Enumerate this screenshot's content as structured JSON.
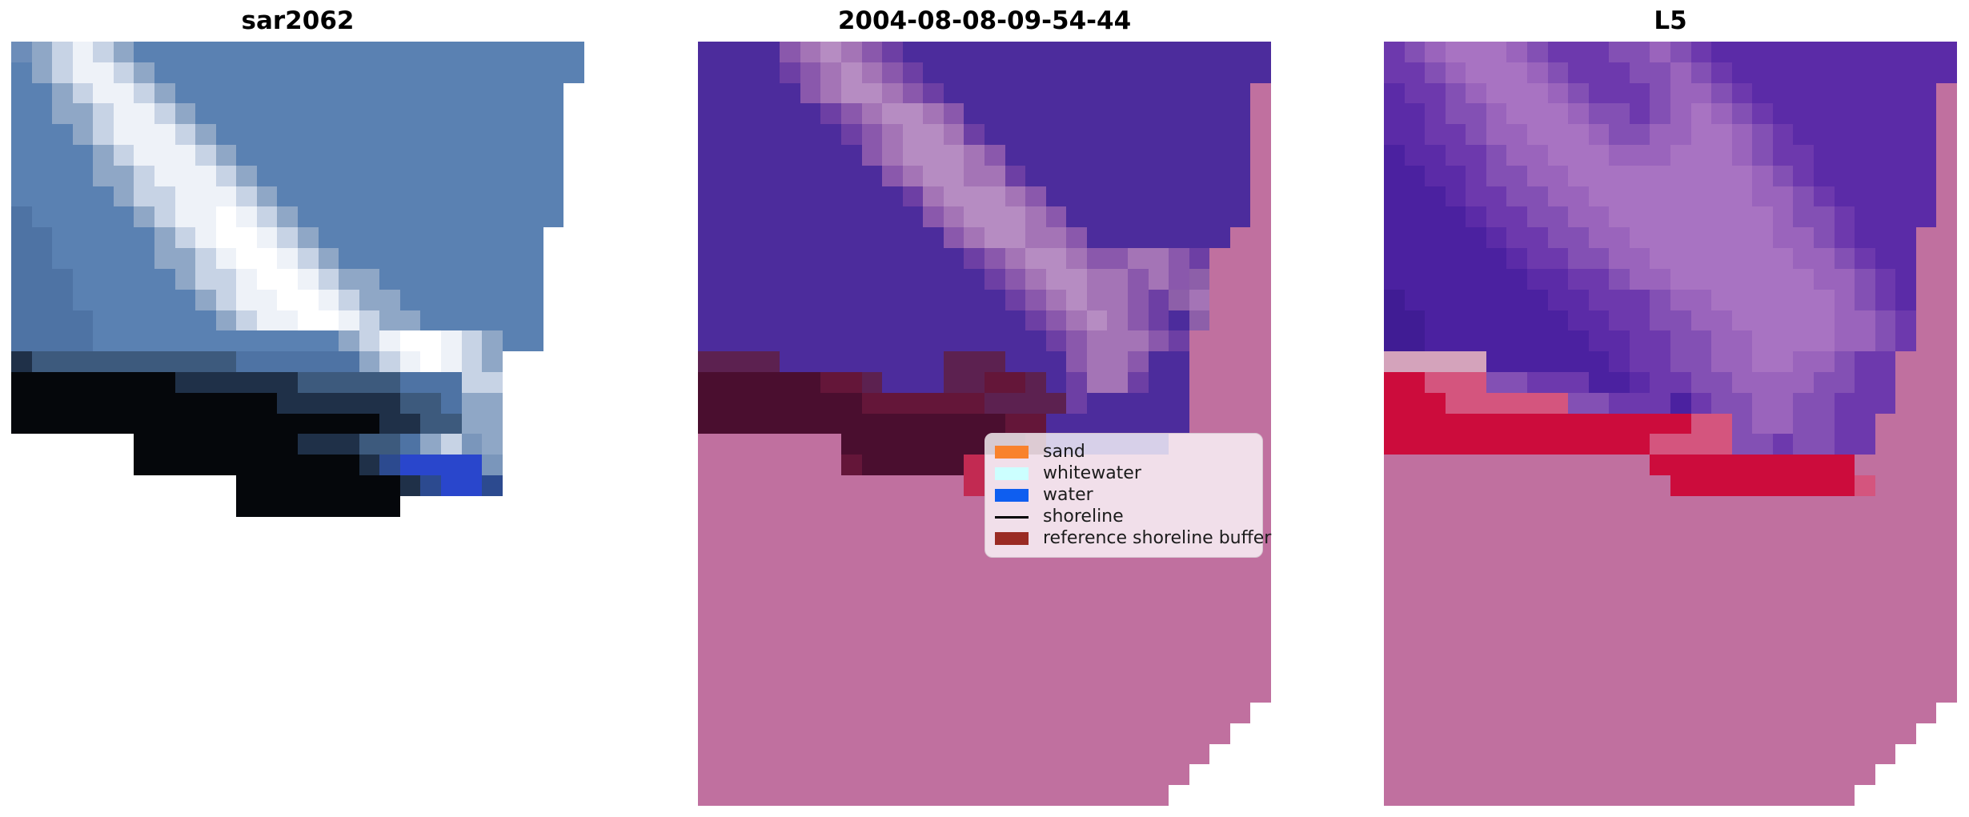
{
  "figure": {
    "background": "#ffffff",
    "kind": "matplotlib-style image triptych of coregistered SAR / classified optical / Landsat-5 scenes"
  },
  "chart_data": {
    "type": "heatmap",
    "grid_size": {
      "cols": 28,
      "rows": 37
    },
    "legend_position": "center-right of middle panel",
    "palette": {
      ".": "transparent",
      "a": "#6d8db9",
      "b": "#5a81b2",
      "c": "#4e73a4",
      "d": "#8fa7c6",
      "e": "#c7d3e5",
      "w": "#eef2f8",
      "W": "#ffffff",
      "E": "#7a96bb",
      "h": "#3d5a7d",
      "g": "#1f3048",
      "k": "#05070b",
      "n": "#2c4a8f",
      "B": "#2946cc",
      "P": "#4c2c9c",
      "o": "#6d3fa4",
      "p": "#8a58ac",
      "q": "#a474b6",
      "Q": "#b68cc2",
      "t": "#8d5fa9",
      "R": "#c0709f",
      "M": "#4a0e2f",
      "N": "#641639",
      "m": "#5c2150",
      "r": "#c22a52",
      "U": "#5b2ba7",
      "u": "#4b21a0",
      "v": "#401c94",
      "x": "#6d39ad",
      "y": "#8350b4",
      "z": "#9a64bc",
      "Z": "#a873c2",
      "L": "#d4a3bb",
      "C": "#cc0c3c",
      "f": "#d4557e"
    },
    "panels": [
      {
        "title": "sar2062",
        "description": "pixelated SAR backscatter image, blue with white diagonal wave band and black lower-left region, stepped no-data edges",
        "grid": [
          "adewedbbbbbbbbbbbbbbbbbbbbbb",
          "bdewwedbbbbbbbbbbbbbbbbbbbbb",
          "bbdewwedbbbbbbbbbbbbbbbbbbb.",
          "bbddewwedbbbbbbbbbbbbbbbbbb.",
          "bbbdewwwedbbbbbbbbbbbbbbbbb.",
          "bbbbdewwwedbbbbbbbbbbbbbbbb.",
          "bbbbddewwwedbbbbbbbbbbbbbbb.",
          "bbbbbdeewwwedbbbbbbbbbbbbbb.",
          "cbbbbbdewwWwedbbbbbbbbbbbbb.",
          "ccbbbbbdewWWwedbbbbbbbbbbb..",
          "ccbbbbbddewWWwedbbbbbbbbbb..",
          "cccbbbbbdeewWWweddbbbbbbbb..",
          "cccbbbbbbdewwWWweddbbbbbbb..",
          "ccccbbbbbbdewwWWweddbbbbbb..",
          "ccccbbbbbbbbbbbbdewWWwedbb..",
          "ghhhhhhhhhhccccccdewWwed....",
          "kkkkkkkkgggggghhhhhcccee....",
          "kkkkkkkkkkkkkgggggghhcdd....",
          "kkkkkkkkkkkkkkkkkkgghhdd....",
          "......kkkkkkkkggghhcdeEd....",
          "......kkkkkkkkkkkgnBBBBE....",
          "...........kkkkkkkkgnBBn....",
          "...........kkkkkkkk.........",
          "............................",
          "............................",
          "............................",
          "............................",
          "............................",
          "............................",
          "............................",
          "............................",
          "............................",
          "............................",
          "............................",
          "............................",
          "............................",
          "............................"
        ]
      },
      {
        "title": "2004-08-08-09-54-44",
        "description": "classified optical scene: purple water overlay, mauve whitewater band, rose sand area, dark maroon reference shoreline buffer",
        "has_legend": true,
        "grid": [
          "PPPPpqQqpoPPPPPPPPPPPPPPPPPP",
          "PPPPopqQqpoPPPPPPPPPPPPPPPPP",
          "PPPPPpqQQqpoPPPPPPPPPPPPPPPR",
          "PPPPPPopqQQqpPPPPPPPPPPPPPPR",
          "PPPPPPPopqQQqoPPPPPPPPPPPPPR",
          "PPPPPPPPpqQQQqpPPPPPPPPPPPPR",
          "PPPPPPPPPpqQQqqoPPPPPPPPPPPR",
          "PPPPPPPPPPoqQQQqpPPPPPPPPPPR",
          "PPPPPPPPPPPpqQQQqpPPPPPPPPPR",
          "PPPPPPPPPPPPpqQQqqpPPPPPPPRR",
          "PPPPPPPPPPPPPopqQQqppqqpoRRR",
          "PPPPPPPPPPPPPPopqQQqqpqptRRR",
          "PPPPPPPPPPPPPPPopqQqqpotqRRR",
          "PPPPPPPPPPPPPPPPopqQqpoPtRRR",
          "PPPPPPPPPPPPPPPPPopqqqpoRRRR",
          "mmmmPPPPPPPPmmmPPPpqqpPPRRRR",
          "MMMMMMNNmPPPmmNNmPoqqoPPRRRR",
          "MMMMMMMMNNNNNNmmmmoPPPPPRRRR",
          "MMMMMMMMMMMMMMMNNPPPPPPPRRRR",
          "RRRRRRRMMMMMMMMMNPPPPPPRRRRR",
          "RRRRRRRNMMMMMrRRRRRRRRRRRRRR",
          "RRRRRRRRRRRRRrRRRRRRRRRRRRRR",
          "RRRRRRRRRRRRRRRRRRRRRRRRRRRR",
          "RRRRRRRRRRRRRRRRRRRRRRRRRRRR",
          "RRRRRRRRRRRRRRRRRRRRRRRRRRRR",
          "RRRRRRRRRRRRRRRRRRRRRRRRRRRR",
          "RRRRRRRRRRRRRRRRRRRRRRRRRRRR",
          "RRRRRRRRRRRRRRRRRRRRRRRRRRRR",
          "RRRRRRRRRRRRRRRRRRRRRRRRRRRR",
          "RRRRRRRRRRRRRRRRRRRRRRRRRRRR",
          "RRRRRRRRRRRRRRRRRRRRRRRRRRRR",
          "RRRRRRRRRRRRRRRRRRRRRRRRRRRR",
          "RRRRRRRRRRRRRRRRRRRRRRRRRRR.",
          "RRRRRRRRRRRRRRRRRRRRRRRRRR..",
          "RRRRRRRRRRRRRRRRRRRRRRRRR...",
          "RRRRRRRRRRRRRRRRRRRRRRRR....",
          "RRRRRRRRRRRRRRRRRRRRRRR....."
        ]
      },
      {
        "title": "L5",
        "description": "Landsat-5 scene with purple water blend, soft mauve diagonal band, crimson shoreline-buffer band and rose sand region",
        "grid": [
          "xyzZZZzyxxxyyzyxUUUUUUUUUUUU",
          "xxyzZZZzyxxxyyzyxUUUUUUUUUUU",
          "UxxyzZZZzyxxxyzzyxUUUUUUUUUR",
          "UUxyyzZZZzyyxyzZzyxUUUUUUUUR",
          "UUxxyzzZZZzyyzzZZzyxUUUUUUUR",
          "uUUxxyzzZZZzzzZZZzyxxUUUUUUR",
          "uuUUxyyzzZZZZZZZZZzyxUUUUUUR",
          "uuuUxxyyzzZZZZZZZZzzyxUUUUUR",
          "uuuuUxxyyzzZZZZZZZZzyyxUUUUR",
          "uuuuuUxxyyzzZZZZZZZzzyxUUURR",
          "uuuuuuUxxyyzzZZZZZZZzzyxUURR",
          "uuuuuuuUUxxyzzZZZZZZZzzyxURR",
          "vuuuuuuuUUxxxyzzZZZZZZzyxURR",
          "vvuuuuuuuUUxxyyzzZZZZZzzyxRR",
          "vvuuuuuuuuUUxxyyzzZZZZzzyxRR",
          "LLLLLuuuuuuUxxyyzzZZzzyxxRRR",
          "CCfffyyxxxuuUxxyyzzzzyyxxRRR",
          "CCCffffffyyxxxuxyyzzyyxxxRRR",
          "CCCCCCCCCCCCCCCffyzzyyxxRRRR",
          "CCCCCCCCCCCCCffffyyxyyxxRRRR",
          "RRRRRRRRRRRRRCCCCCCCCCCRRRRR",
          "RRRRRRRRRRRRRRCCCCCCCCCfRRRR",
          "RRRRRRRRRRRRRRRRRRRRRRRRRRRR",
          "RRRRRRRRRRRRRRRRRRRRRRRRRRRR",
          "RRRRRRRRRRRRRRRRRRRRRRRRRRRR",
          "RRRRRRRRRRRRRRRRRRRRRRRRRRRR",
          "RRRRRRRRRRRRRRRRRRRRRRRRRRRR",
          "RRRRRRRRRRRRRRRRRRRRRRRRRRRR",
          "RRRRRRRRRRRRRRRRRRRRRRRRRRRR",
          "RRRRRRRRRRRRRRRRRRRRRRRRRRRR",
          "RRRRRRRRRRRRRRRRRRRRRRRRRRRR",
          "RRRRRRRRRRRRRRRRRRRRRRRRRRRR",
          "RRRRRRRRRRRRRRRRRRRRRRRRRRR.",
          "RRRRRRRRRRRRRRRRRRRRRRRRRR..",
          "RRRRRRRRRRRRRRRRRRRRRRRRR...",
          "RRRRRRRRRRRRRRRRRRRRRRRR....",
          "RRRRRRRRRRRRRRRRRRRRRRR....."
        ]
      }
    ],
    "legend": {
      "items": [
        {
          "label": "sand",
          "color": "#f9822c",
          "type": "patch"
        },
        {
          "label": "whitewater",
          "color": "#ccffff",
          "type": "patch"
        },
        {
          "label": "water",
          "color": "#0e5ef0",
          "type": "patch"
        },
        {
          "label": "shoreline",
          "color": "#000000",
          "type": "line"
        },
        {
          "label": "reference shoreline buffer",
          "color": "#9a2b24",
          "type": "patch"
        }
      ]
    }
  }
}
